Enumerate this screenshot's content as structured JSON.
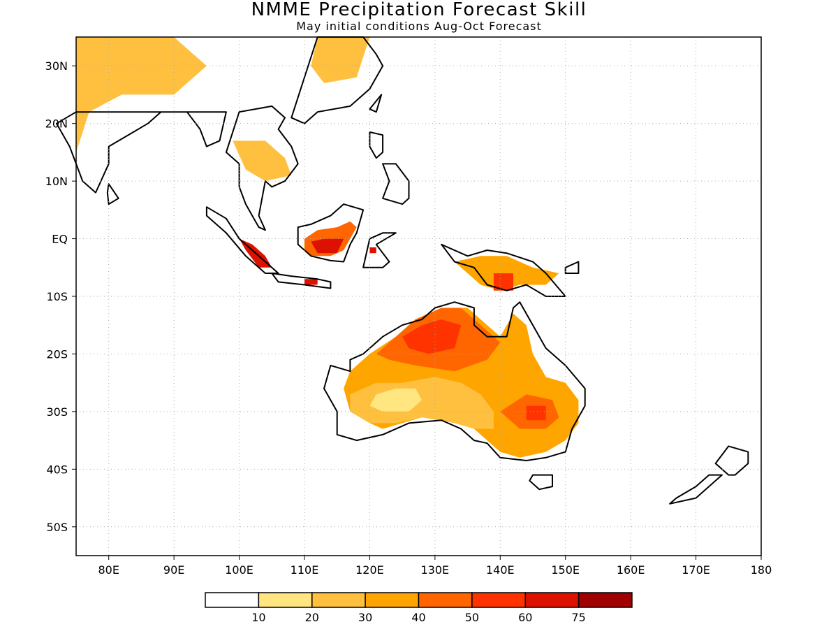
{
  "title": "NMME Precipitation Forecast Skill",
  "subtitle": "May initial conditions  Aug-Oct Forecast",
  "map": {
    "lon_range": [
      75,
      180
    ],
    "lat_range": [
      -55,
      35
    ],
    "gridlines": "dotted",
    "lat_ticks": [
      {
        "lat": 30,
        "label": "30N"
      },
      {
        "lat": 20,
        "label": "20N"
      },
      {
        "lat": 10,
        "label": "10N"
      },
      {
        "lat": 0,
        "label": "EQ"
      },
      {
        "lat": -10,
        "label": "10S"
      },
      {
        "lat": -20,
        "label": "20S"
      },
      {
        "lat": -30,
        "label": "30S"
      },
      {
        "lat": -40,
        "label": "40S"
      },
      {
        "lat": -50,
        "label": "50S"
      }
    ],
    "lon_ticks": [
      {
        "lon": 80,
        "label": "80E"
      },
      {
        "lon": 90,
        "label": "90E"
      },
      {
        "lon": 100,
        "label": "100E"
      },
      {
        "lon": 110,
        "label": "110E"
      },
      {
        "lon": 120,
        "label": "120E"
      },
      {
        "lon": 130,
        "label": "130E"
      },
      {
        "lon": 140,
        "label": "140E"
      },
      {
        "lon": 150,
        "label": "150E"
      },
      {
        "lon": 160,
        "label": "160E"
      },
      {
        "lon": 170,
        "label": "170E"
      },
      {
        "lon": 180,
        "label": "180"
      }
    ]
  },
  "colorbar": {
    "colors": [
      "#ffffff",
      "#ffe680",
      "#ffc040",
      "#ffa500",
      "#ff6600",
      "#ff3300",
      "#dd1100",
      "#a00000"
    ],
    "labels": [
      "10",
      "20",
      "30",
      "40",
      "50",
      "60",
      "75"
    ]
  },
  "chart_data": {
    "type": "heatmap",
    "title": "NMME Precipitation Forecast Skill",
    "subtitle": "May initial conditions  Aug-Oct Forecast",
    "units": "",
    "bins": [
      0,
      10,
      20,
      30,
      40,
      50,
      60,
      75,
      100
    ],
    "regions": [
      {
        "name": "Australia outer",
        "level": 30,
        "points": [
          [
            117,
            -23
          ],
          [
            120,
            -20
          ],
          [
            124,
            -17
          ],
          [
            127,
            -14
          ],
          [
            131,
            -12
          ],
          [
            135,
            -12
          ],
          [
            138,
            -15
          ],
          [
            140,
            -17
          ],
          [
            142,
            -13
          ],
          [
            144,
            -15
          ],
          [
            145,
            -20
          ],
          [
            147,
            -24
          ],
          [
            150,
            -25
          ],
          [
            152,
            -28
          ],
          [
            152,
            -32
          ],
          [
            150,
            -35
          ],
          [
            147,
            -37
          ],
          [
            143,
            -38
          ],
          [
            140,
            -37
          ],
          [
            138,
            -35
          ],
          [
            136,
            -33
          ],
          [
            134,
            -32
          ],
          [
            131,
            -31
          ],
          [
            128,
            -31
          ],
          [
            125,
            -32
          ],
          [
            122,
            -33
          ],
          [
            120,
            -32
          ],
          [
            117,
            -30
          ],
          [
            116,
            -26
          ]
        ]
      },
      {
        "name": "Australia south band",
        "level": 20,
        "points": [
          [
            117,
            -27
          ],
          [
            121,
            -25
          ],
          [
            125,
            -25
          ],
          [
            130,
            -24
          ],
          [
            134,
            -25
          ],
          [
            137,
            -27
          ],
          [
            139,
            -30
          ],
          [
            139,
            -33
          ],
          [
            136,
            -33
          ],
          [
            133,
            -32
          ],
          [
            128,
            -31
          ],
          [
            124,
            -32
          ],
          [
            120,
            -32
          ],
          [
            117,
            -30
          ]
        ]
      },
      {
        "name": "Australia inland gap",
        "level": 10,
        "points": [
          [
            121,
            -27
          ],
          [
            124,
            -26
          ],
          [
            127,
            -26
          ],
          [
            128,
            -28
          ],
          [
            126,
            -30
          ],
          [
            122,
            -30
          ],
          [
            120,
            -29
          ]
        ]
      },
      {
        "name": "Australia southeast",
        "level": 40,
        "points": [
          [
            140,
            -30
          ],
          [
            144,
            -27
          ],
          [
            148,
            -28
          ],
          [
            149,
            -31
          ],
          [
            147,
            -33
          ],
          [
            143,
            -33
          ]
        ]
      },
      {
        "name": "Australia southeast core",
        "level": 50,
        "points": [
          [
            144,
            -29
          ],
          [
            147,
            -29
          ],
          [
            147,
            -31.5
          ],
          [
            144,
            -31.5
          ]
        ]
      },
      {
        "name": "Australia north",
        "level": 40,
        "points": [
          [
            121,
            -20
          ],
          [
            124,
            -17
          ],
          [
            127,
            -14
          ],
          [
            131,
            -12
          ],
          [
            134,
            -12
          ],
          [
            137,
            -15
          ],
          [
            140,
            -18
          ],
          [
            138,
            -21
          ],
          [
            133,
            -23
          ],
          [
            127,
            -22
          ],
          [
            123,
            -21
          ]
        ]
      },
      {
        "name": "Australia north core",
        "level": 50,
        "points": [
          [
            125,
            -17
          ],
          [
            128,
            -15
          ],
          [
            131,
            -14
          ],
          [
            134,
            -15
          ],
          [
            133,
            -19
          ],
          [
            129,
            -20
          ],
          [
            126,
            -19
          ]
        ]
      },
      {
        "name": "Cape York",
        "level": 30,
        "points": [
          [
            141,
            -16
          ],
          [
            143,
            -14
          ],
          [
            144,
            -17
          ],
          [
            145,
            -20
          ],
          [
            142,
            -21
          ]
        ]
      },
      {
        "name": "Borneo",
        "level": 40,
        "points": [
          [
            110,
            0
          ],
          [
            112,
            1.5
          ],
          [
            115,
            2
          ],
          [
            117,
            3
          ],
          [
            118,
            2
          ],
          [
            116,
            -2
          ],
          [
            114,
            -3
          ],
          [
            111,
            -3
          ],
          [
            110,
            -2
          ]
        ]
      },
      {
        "name": "Borneo core",
        "level": 60,
        "points": [
          [
            111,
            -0.5
          ],
          [
            113,
            0
          ],
          [
            116,
            0
          ],
          [
            115,
            -2.5
          ],
          [
            112,
            -2.5
          ]
        ]
      },
      {
        "name": "Sumatra",
        "level": 60,
        "points": [
          [
            100,
            0
          ],
          [
            102,
            -1
          ],
          [
            104,
            -3
          ],
          [
            105,
            -5
          ],
          [
            103,
            -5
          ],
          [
            101,
            -2
          ]
        ]
      },
      {
        "name": "Java",
        "level": 60,
        "points": [
          [
            110,
            -7
          ],
          [
            112,
            -7
          ],
          [
            112,
            -8
          ],
          [
            110,
            -8
          ]
        ]
      },
      {
        "name": "Sulawesi",
        "level": 60,
        "points": [
          [
            120,
            -1.5
          ],
          [
            121,
            -1.5
          ],
          [
            121,
            -2.5
          ],
          [
            120,
            -2.5
          ]
        ]
      },
      {
        "name": "New Guinea",
        "level": 30,
        "points": [
          [
            133,
            -4
          ],
          [
            137,
            -3
          ],
          [
            141,
            -3
          ],
          [
            145,
            -5
          ],
          [
            149,
            -6
          ],
          [
            147,
            -8
          ],
          [
            143,
            -8
          ],
          [
            140,
            -9
          ],
          [
            137,
            -8
          ],
          [
            134,
            -5
          ]
        ]
      },
      {
        "name": "New Guinea core",
        "level": 50,
        "points": [
          [
            139,
            -6
          ],
          [
            142,
            -6
          ],
          [
            142,
            -9
          ],
          [
            139,
            -9
          ]
        ]
      },
      {
        "name": "Indochina",
        "level": 20,
        "points": [
          [
            99,
            17
          ],
          [
            104,
            17
          ],
          [
            107,
            14
          ],
          [
            108,
            11
          ],
          [
            104,
            10
          ],
          [
            101,
            12
          ]
        ]
      },
      {
        "name": "South Asia",
        "level": 20,
        "points": [
          [
            75,
            35
          ],
          [
            90,
            35
          ],
          [
            95,
            30
          ],
          [
            90,
            25
          ],
          [
            82,
            25
          ],
          [
            77,
            22
          ],
          [
            75,
            15
          ]
        ]
      },
      {
        "name": "China east",
        "level": 20,
        "points": [
          [
            112,
            35
          ],
          [
            120,
            35
          ],
          [
            118,
            28
          ],
          [
            113,
            27
          ],
          [
            111,
            30
          ]
        ]
      }
    ]
  }
}
